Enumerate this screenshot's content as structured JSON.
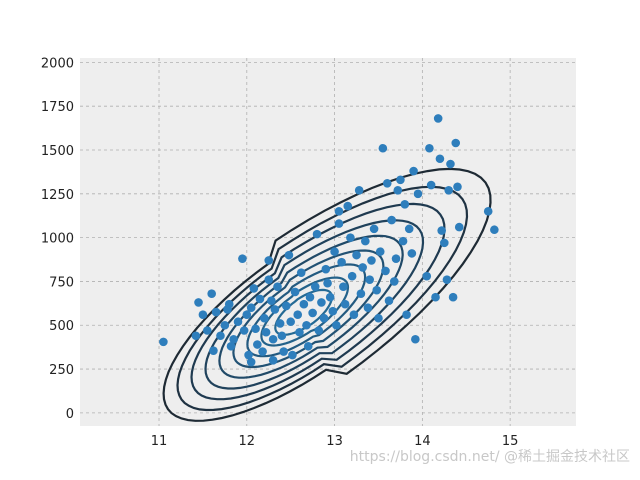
{
  "chart_data": {
    "type": "scatter",
    "title": "",
    "xlabel": "",
    "ylabel": "",
    "xlim": [
      10.1,
      15.75
    ],
    "ylim": [
      -75,
      2025
    ],
    "x_ticks": [
      11,
      12,
      13,
      14,
      15
    ],
    "y_ticks": [
      0,
      250,
      500,
      750,
      1000,
      1250,
      1500,
      1750,
      2000
    ],
    "grid": true,
    "legend": "none",
    "colors": {
      "background": "#eeeeee",
      "grid": "#b0b0b0",
      "points": "#2e7ebc",
      "contours": [
        "#1e2a34",
        "#1f3242",
        "#1f3a50",
        "#20425c",
        "#214a68",
        "#225274",
        "#235a80",
        "#24628a",
        "#256a94"
      ]
    },
    "density_contours": {
      "center": [
        12.55,
        560
      ],
      "levels": 9
    },
    "points": [
      [
        11.05,
        405
      ],
      [
        11.42,
        440
      ],
      [
        11.45,
        630
      ],
      [
        11.5,
        560
      ],
      [
        11.55,
        470
      ],
      [
        11.6,
        680
      ],
      [
        11.62,
        355
      ],
      [
        11.65,
        575
      ],
      [
        11.7,
        440
      ],
      [
        11.75,
        500
      ],
      [
        11.78,
        590
      ],
      [
        11.8,
        620
      ],
      [
        11.82,
        380
      ],
      [
        11.85,
        420
      ],
      [
        11.9,
        520
      ],
      [
        11.95,
        880
      ],
      [
        11.97,
        470
      ],
      [
        12.0,
        560
      ],
      [
        12.02,
        330
      ],
      [
        12.05,
        600
      ],
      [
        12.05,
        290
      ],
      [
        12.08,
        710
      ],
      [
        12.1,
        480
      ],
      [
        12.12,
        390
      ],
      [
        12.15,
        650
      ],
      [
        12.18,
        350
      ],
      [
        12.2,
        540
      ],
      [
        12.22,
        460
      ],
      [
        12.25,
        870
      ],
      [
        12.25,
        760
      ],
      [
        12.28,
        640
      ],
      [
        12.3,
        420
      ],
      [
        12.3,
        300
      ],
      [
        12.32,
        590
      ],
      [
        12.35,
        720
      ],
      [
        12.38,
        510
      ],
      [
        12.4,
        440
      ],
      [
        12.42,
        350
      ],
      [
        12.45,
        610
      ],
      [
        12.48,
        900
      ],
      [
        12.5,
        520
      ],
      [
        12.52,
        330
      ],
      [
        12.55,
        690
      ],
      [
        12.58,
        560
      ],
      [
        12.6,
        460
      ],
      [
        12.62,
        800
      ],
      [
        12.65,
        620
      ],
      [
        12.68,
        500
      ],
      [
        12.7,
        380
      ],
      [
        12.72,
        660
      ],
      [
        12.75,
        570
      ],
      [
        12.78,
        720
      ],
      [
        12.8,
        1020
      ],
      [
        12.82,
        470
      ],
      [
        12.85,
        630
      ],
      [
        12.88,
        540
      ],
      [
        12.9,
        820
      ],
      [
        12.92,
        740
      ],
      [
        12.95,
        660
      ],
      [
        12.98,
        580
      ],
      [
        13.0,
        920
      ],
      [
        13.02,
        500
      ],
      [
        13.05,
        1150
      ],
      [
        13.05,
        1080
      ],
      [
        13.08,
        860
      ],
      [
        13.1,
        720
      ],
      [
        13.12,
        620
      ],
      [
        13.15,
        1180
      ],
      [
        13.18,
        1000
      ],
      [
        13.2,
        780
      ],
      [
        13.22,
        560
      ],
      [
        13.25,
        900
      ],
      [
        13.28,
        1270
      ],
      [
        13.3,
        680
      ],
      [
        13.32,
        830
      ],
      [
        13.35,
        980
      ],
      [
        13.38,
        600
      ],
      [
        13.4,
        760
      ],
      [
        13.42,
        870
      ],
      [
        13.45,
        1050
      ],
      [
        13.48,
        700
      ],
      [
        13.5,
        540
      ],
      [
        13.52,
        920
      ],
      [
        13.55,
        1510
      ],
      [
        13.58,
        810
      ],
      [
        13.6,
        1310
      ],
      [
        13.62,
        640
      ],
      [
        13.65,
        1100
      ],
      [
        13.68,
        750
      ],
      [
        13.7,
        880
      ],
      [
        13.72,
        1270
      ],
      [
        13.75,
        1330
      ],
      [
        13.78,
        980
      ],
      [
        13.8,
        1190
      ],
      [
        13.82,
        560
      ],
      [
        13.85,
        1050
      ],
      [
        13.88,
        910
      ],
      [
        13.9,
        1380
      ],
      [
        13.92,
        420
      ],
      [
        13.95,
        1250
      ],
      [
        14.05,
        780
      ],
      [
        14.08,
        1510
      ],
      [
        14.1,
        1300
      ],
      [
        14.15,
        660
      ],
      [
        14.18,
        1680
      ],
      [
        14.2,
        1450
      ],
      [
        14.22,
        1040
      ],
      [
        14.25,
        970
      ],
      [
        14.28,
        760
      ],
      [
        14.3,
        1270
      ],
      [
        14.32,
        1420
      ],
      [
        14.35,
        660
      ],
      [
        14.38,
        1540
      ],
      [
        14.4,
        1290
      ],
      [
        14.42,
        1060
      ],
      [
        14.75,
        1150
      ],
      [
        14.82,
        1045
      ]
    ]
  },
  "watermark": "https://blog.csdn.net/  @稀土掘金技术社区"
}
